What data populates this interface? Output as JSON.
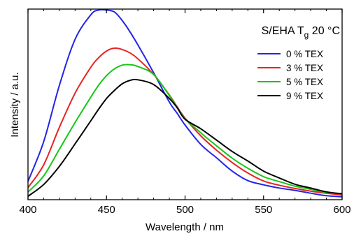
{
  "chart_data": {
    "type": "line",
    "annotation": "S/EHA T",
    "annotation_subscript": "g",
    "annotation_suffix": " 20 °C",
    "xlabel": "Wavelength / nm",
    "ylabel": "Intensity / a.u.",
    "xlim": [
      400,
      600
    ],
    "ylim": [
      0,
      1.0
    ],
    "x_ticks": [
      400,
      450,
      500,
      550,
      600
    ],
    "x_ticklabels": [
      "400",
      "450",
      "500",
      "550",
      "600"
    ],
    "y_ticklabels": "none",
    "grid": false,
    "legend_position": "top-right",
    "x": [
      400,
      410,
      420,
      430,
      440,
      445,
      450,
      455,
      460,
      465,
      470,
      480,
      490,
      495,
      500,
      510,
      520,
      530,
      540,
      550,
      560,
      570,
      580,
      590,
      600
    ],
    "series": [
      {
        "name": "0 % TEX",
        "color": "#2424e6",
        "values": [
          0.096,
          0.305,
          0.6,
          0.841,
          0.97,
          0.995,
          0.995,
          0.985,
          0.94,
          0.88,
          0.812,
          0.666,
          0.512,
          0.453,
          0.392,
          0.29,
          0.22,
          0.15,
          0.1,
          0.078,
          0.061,
          0.049,
          0.034,
          0.021,
          0.015
        ]
      },
      {
        "name": "3 % TEX",
        "color": "#e62424",
        "values": [
          0.063,
          0.183,
          0.38,
          0.559,
          0.695,
          0.745,
          0.78,
          0.795,
          0.788,
          0.77,
          0.739,
          0.657,
          0.549,
          0.487,
          0.428,
          0.335,
          0.26,
          0.195,
          0.14,
          0.098,
          0.076,
          0.059,
          0.045,
          0.034,
          0.025
        ]
      },
      {
        "name": "5 % TEX",
        "color": "#14c814",
        "values": [
          0.04,
          0.125,
          0.265,
          0.405,
          0.538,
          0.601,
          0.651,
          0.686,
          0.706,
          0.708,
          0.699,
          0.657,
          0.546,
          0.483,
          0.425,
          0.351,
          0.283,
          0.218,
          0.165,
          0.121,
          0.095,
          0.071,
          0.055,
          0.038,
          0.032
        ]
      },
      {
        "name": "9 % TEX",
        "color": "#000000",
        "values": [
          0.018,
          0.08,
          0.175,
          0.293,
          0.414,
          0.475,
          0.531,
          0.573,
          0.608,
          0.626,
          0.629,
          0.604,
          0.531,
          0.482,
          0.422,
          0.372,
          0.313,
          0.253,
          0.203,
          0.15,
          0.114,
          0.081,
          0.061,
          0.041,
          0.031
        ]
      }
    ]
  }
}
